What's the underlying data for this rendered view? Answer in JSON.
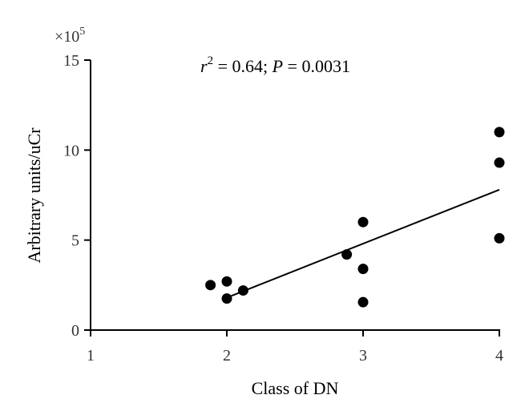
{
  "chart_data": {
    "type": "scatter",
    "title": "",
    "xlabel": "Class of DN",
    "ylabel": "Arbitrary units/uCr",
    "y_multiplier_label": {
      "base": "×10",
      "exponent": "5"
    },
    "annotation": {
      "r_symbol": "r",
      "r_exponent": "2",
      "r_value": " = 0.64; ",
      "p_symbol": "P",
      "p_value": " = 0.0031"
    },
    "xlim": [
      1,
      4
    ],
    "ylim": [
      0,
      15
    ],
    "x_ticks": [
      1,
      2,
      3,
      4
    ],
    "y_ticks": [
      0,
      5,
      10,
      15
    ],
    "x_tick_labels": [
      "1",
      "2",
      "3",
      "4"
    ],
    "y_tick_labels": [
      "0",
      "5",
      "10",
      "15"
    ],
    "grid": false,
    "points": [
      {
        "x": 1.88,
        "y": 2.5
      },
      {
        "x": 2.0,
        "y": 2.7
      },
      {
        "x": 2.0,
        "y": 1.75
      },
      {
        "x": 2.12,
        "y": 2.2
      },
      {
        "x": 2.88,
        "y": 4.2
      },
      {
        "x": 3.0,
        "y": 6.0
      },
      {
        "x": 3.0,
        "y": 3.4
      },
      {
        "x": 3.0,
        "y": 1.55
      },
      {
        "x": 4.0,
        "y": 11.0
      },
      {
        "x": 4.0,
        "y": 9.3
      },
      {
        "x": 4.0,
        "y": 5.1
      }
    ],
    "fit_line": {
      "x": [
        2.0,
        4.0
      ],
      "y": [
        1.8,
        7.8
      ]
    }
  }
}
